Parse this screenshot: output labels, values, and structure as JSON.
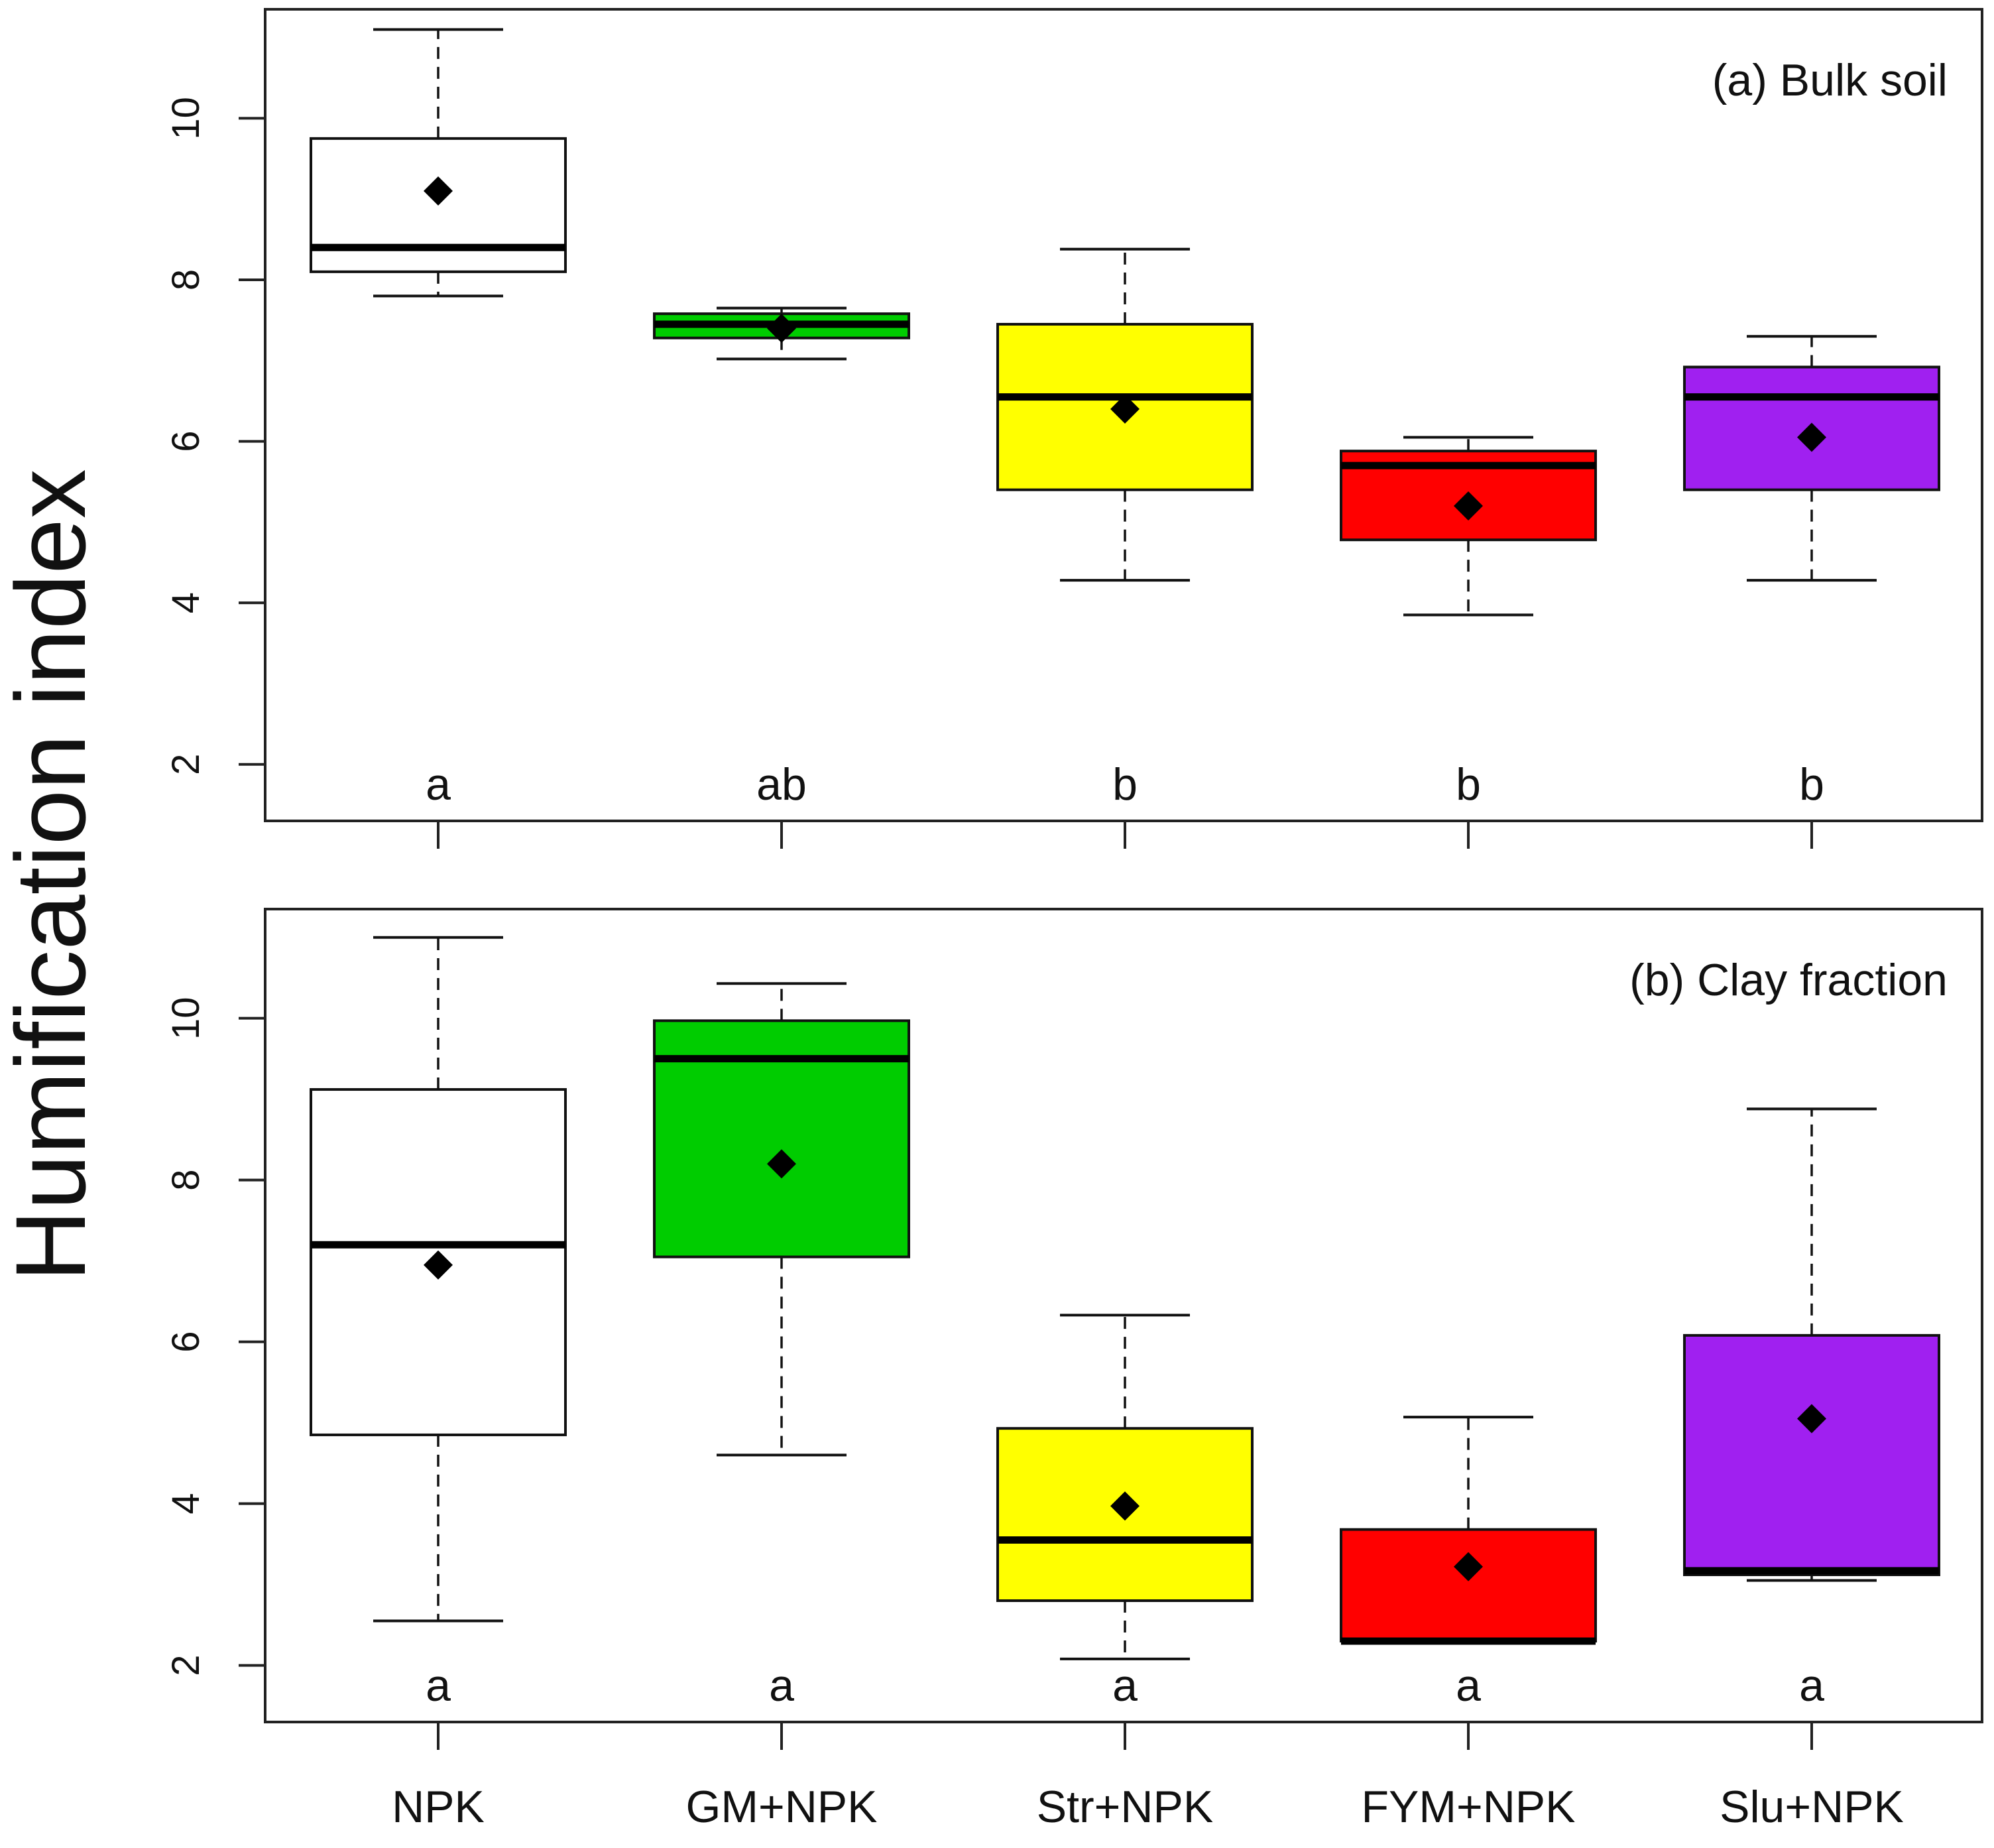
{
  "chart_data": {
    "type": "boxplot",
    "ylabel": "Humification index",
    "categories": [
      "NPK",
      "GM+NPK",
      "Str+NPK",
      "FYM+NPK",
      "Slu+NPK"
    ],
    "colors": [
      "#ffffff",
      "#00cc00",
      "#ffff00",
      "#ff0000",
      "#a020f0"
    ],
    "ylim": [
      1.3,
      11.35
    ],
    "yticks": [
      2,
      4,
      6,
      8,
      10
    ],
    "ytick_labels": [
      "2",
      "4",
      "6",
      "8",
      "10"
    ],
    "panels": [
      {
        "title": "(a) Bulk soil",
        "boxes": [
          {
            "whisker_low": 7.8,
            "q1": 8.1,
            "median": 8.4,
            "q3": 9.75,
            "whisker_high": 11.1,
            "mean": 9.1,
            "letter": "a"
          },
          {
            "whisker_low": 7.02,
            "q1": 7.28,
            "median": 7.45,
            "q3": 7.58,
            "whisker_high": 7.65,
            "mean": 7.4,
            "letter": "ab"
          },
          {
            "whisker_low": 4.28,
            "q1": 5.4,
            "median": 6.55,
            "q3": 7.45,
            "whisker_high": 8.38,
            "mean": 6.4,
            "letter": "b"
          },
          {
            "whisker_low": 3.85,
            "q1": 4.78,
            "median": 5.7,
            "q3": 5.88,
            "whisker_high": 6.05,
            "mean": 5.2,
            "letter": "b"
          },
          {
            "whisker_low": 4.28,
            "q1": 5.4,
            "median": 6.55,
            "q3": 6.92,
            "whisker_high": 7.3,
            "mean": 6.05,
            "letter": "b"
          }
        ]
      },
      {
        "title": "(b) Clay fraction",
        "boxes": [
          {
            "whisker_low": 2.55,
            "q1": 4.85,
            "median": 7.2,
            "q3": 9.12,
            "whisker_high": 11.0,
            "mean": 6.95,
            "letter": "a"
          },
          {
            "whisker_low": 4.6,
            "q1": 7.05,
            "median": 9.5,
            "q3": 9.97,
            "whisker_high": 10.43,
            "mean": 8.2,
            "letter": "a"
          },
          {
            "whisker_low": 2.08,
            "q1": 2.8,
            "median": 3.55,
            "q3": 4.93,
            "whisker_high": 6.33,
            "mean": 3.97,
            "letter": "a"
          },
          {
            "whisker_low": 2.28,
            "q1": 2.3,
            "median": 2.3,
            "q3": 3.68,
            "whisker_high": 5.07,
            "mean": 3.22,
            "letter": "a"
          },
          {
            "whisker_low": 3.05,
            "q1": 3.12,
            "median": 3.17,
            "q3": 6.08,
            "whisker_high": 8.88,
            "mean": 5.05,
            "letter": "a"
          }
        ]
      }
    ]
  }
}
